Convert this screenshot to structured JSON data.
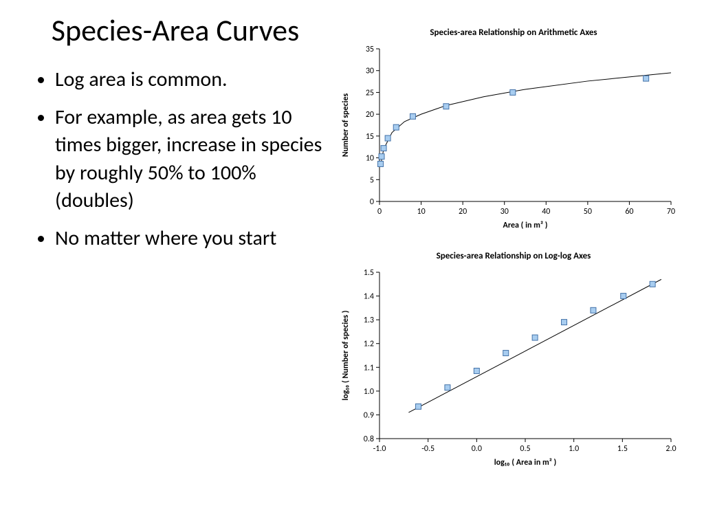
{
  "title": "Species-Area Curves",
  "bullets": [
    "Log area is common.",
    "For example, as area gets 10 times bigger, increase in species by roughly 50% to 100% (doubles)",
    "No matter where you start"
  ],
  "chart1": {
    "title": "Species-area Relationship on Arithmetic Axes",
    "type": "scatter-curve",
    "xlabel": "Area ( in m² )",
    "ylabel": "Number of species",
    "xlim": [
      0,
      70
    ],
    "xtick_step": 10,
    "ylim": [
      0,
      35
    ],
    "ytick_step": 5,
    "marker_fill": "#a8cdf0",
    "marker_stroke": "#4472a8",
    "marker_size": 8,
    "curve_color": "#000000",
    "background": "#ffffff",
    "points": [
      {
        "x": 0.25,
        "y": 8.6
      },
      {
        "x": 0.5,
        "y": 10.3
      },
      {
        "x": 1,
        "y": 12.2
      },
      {
        "x": 2,
        "y": 14.5
      },
      {
        "x": 4,
        "y": 17.0
      },
      {
        "x": 8,
        "y": 19.5
      },
      {
        "x": 16,
        "y": 21.8
      },
      {
        "x": 32,
        "y": 25.0
      },
      {
        "x": 64,
        "y": 28.2
      }
    ],
    "curve": [
      {
        "x": 0.2,
        "y": 8.0
      },
      {
        "x": 1,
        "y": 12.0
      },
      {
        "x": 3,
        "y": 15.8
      },
      {
        "x": 6,
        "y": 18.3
      },
      {
        "x": 10,
        "y": 20.0
      },
      {
        "x": 16,
        "y": 22.0
      },
      {
        "x": 25,
        "y": 24.0
      },
      {
        "x": 35,
        "y": 25.7
      },
      {
        "x": 50,
        "y": 27.6
      },
      {
        "x": 70,
        "y": 29.5
      }
    ]
  },
  "chart2": {
    "title": "Species-area Relationship on Log-log Axes",
    "type": "scatter-line",
    "xlabel": "log₁₀ ( Area in m² )",
    "ylabel": "log₁₀ ( Number of species )",
    "xlim": [
      -1.0,
      2.0
    ],
    "xtick_step": 0.5,
    "ylim": [
      0.8,
      1.5
    ],
    "ytick_step": 0.1,
    "marker_fill": "#a8cdf0",
    "marker_stroke": "#4472a8",
    "marker_size": 8,
    "line_color": "#000000",
    "background": "#ffffff",
    "points": [
      {
        "x": -0.6,
        "y": 0.935
      },
      {
        "x": -0.3,
        "y": 1.015
      },
      {
        "x": 0.0,
        "y": 1.085
      },
      {
        "x": 0.3,
        "y": 1.16
      },
      {
        "x": 0.6,
        "y": 1.225
      },
      {
        "x": 0.9,
        "y": 1.29
      },
      {
        "x": 1.2,
        "y": 1.34
      },
      {
        "x": 1.51,
        "y": 1.4
      },
      {
        "x": 1.81,
        "y": 1.45
      }
    ],
    "line": [
      {
        "x": -0.7,
        "y": 0.91
      },
      {
        "x": 1.9,
        "y": 1.47
      }
    ]
  }
}
